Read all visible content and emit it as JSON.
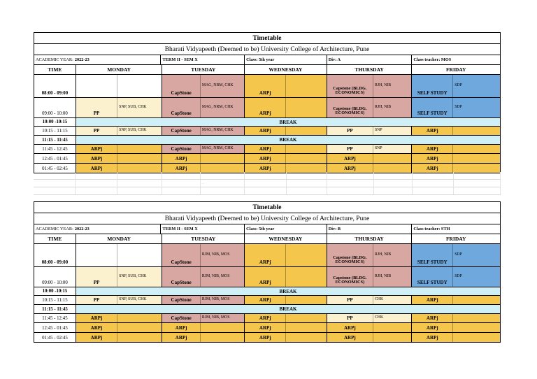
{
  "colors": {
    "yellow": "#F4C64B",
    "cream": "#FCF1CE",
    "pink": "#D9A7A1",
    "blue": "#6FA8DC",
    "break_band": "#CFF0F7",
    "white": "#FFFFFF"
  },
  "empty_area_note": "..",
  "tables": [
    {
      "title": "Timetable",
      "subtitle": "Bharati Vidyapeeth (Deemed to be) University College of Architecture, Pune",
      "meta": {
        "academic_year_label": "ACADEMIC YEAR:",
        "academic_year": "2022-23",
        "term": "TERM II - SEM X",
        "class": "Class: 5th year",
        "division": "Div: A",
        "teacher": "Class teacher: MOS"
      },
      "day_headers": [
        "TIME",
        "MONDAY",
        "TUESDAY",
        "WEDNESDAY",
        "THURSDAY",
        "FRIDAY"
      ],
      "rows": [
        {
          "time": "08:00 - 09:00",
          "bold": true,
          "kind": "slots",
          "cells": [
            {
              "main": "",
              "code": "",
              "bg": "white"
            },
            {
              "main": "CapStone",
              "code": "MAG, NRM, CHK",
              "bg": "pink"
            },
            {
              "main": "ARPj",
              "code": "",
              "bg": "yellow"
            },
            {
              "main": "Capstone (BLDG. ECONOMICS)",
              "code": "RJH, NIB",
              "bg": "pink"
            },
            {
              "main": "SELF STUDY",
              "code": "SDP",
              "bg": "blue"
            }
          ]
        },
        {
          "time": "09:00 - 10:00",
          "bold": false,
          "kind": "slots",
          "cells": [
            {
              "main": "PP",
              "code": "SNP, SUB, CHK",
              "bg": "cream"
            },
            {
              "main": "CapStone",
              "code": "MAG, NRM, CHK",
              "bg": "pink"
            },
            {
              "main": "ARPj",
              "code": "",
              "bg": "yellow"
            },
            {
              "main": "Capstone (BLDG. ECONOMICS)",
              "code": "RJH, NIB",
              "bg": "pink"
            },
            {
              "main": "SELF STUDY",
              "code": "SDP",
              "bg": "blue"
            }
          ]
        },
        {
          "time": "10:00 -10:15",
          "bold": true,
          "kind": "break",
          "label": "BREAK"
        },
        {
          "time": "10:15 - 11:15",
          "bold": false,
          "kind": "slots",
          "cells": [
            {
              "main": "PP",
              "code": "SNP, SUB, CHK",
              "bg": "cream"
            },
            {
              "main": "CapStone",
              "code": "MAG, NRM, CHK",
              "bg": "pink"
            },
            {
              "main": "ARPj",
              "code": "",
              "bg": "yellow"
            },
            {
              "main": "PP",
              "code": "SNP",
              "bg": "cream"
            },
            {
              "main": "ARPj",
              "code": "",
              "bg": "yellow"
            }
          ]
        },
        {
          "time": "11:15 - 11:45",
          "bold": true,
          "kind": "break",
          "label": "BREAK"
        },
        {
          "time": "11:45 - 12:45",
          "bold": false,
          "kind": "slots",
          "cells": [
            {
              "main": "ARPj",
              "code": "",
              "bg": "yellow"
            },
            {
              "main": "CapStone",
              "code": "MAG, NRM, CHK",
              "bg": "pink"
            },
            {
              "main": "ARPj",
              "code": "",
              "bg": "yellow"
            },
            {
              "main": "PP",
              "code": "SNP",
              "bg": "cream"
            },
            {
              "main": "ARPj",
              "code": "",
              "bg": "yellow"
            }
          ]
        },
        {
          "time": "12:45 - 01:45",
          "bold": false,
          "kind": "slots",
          "cells": [
            {
              "main": "ARPj",
              "code": "",
              "bg": "yellow"
            },
            {
              "main": "ARPj",
              "code": "",
              "bg": "yellow"
            },
            {
              "main": "ARPj",
              "code": "",
              "bg": "yellow"
            },
            {
              "main": "ARPj",
              "code": "",
              "bg": "yellow"
            },
            {
              "main": "ARPj",
              "code": "",
              "bg": "yellow"
            }
          ]
        },
        {
          "time": "01:45 - 02:45",
          "bold": false,
          "kind": "slots",
          "cells": [
            {
              "main": "ARPj",
              "code": "",
              "bg": "yellow"
            },
            {
              "main": "ARPj",
              "code": "",
              "bg": "yellow"
            },
            {
              "main": "ARPj",
              "code": "",
              "bg": "yellow"
            },
            {
              "main": "ARPj",
              "code": "",
              "bg": "yellow"
            },
            {
              "main": "ARPj",
              "code": "",
              "bg": "yellow"
            }
          ]
        }
      ]
    },
    {
      "title": "Timetable",
      "subtitle": "Bharati Vidyapeeth (Deemed to be) University College of Architecture, Pune",
      "meta": {
        "academic_year_label": "ACADEMIC YEAR:",
        "academic_year": "2022-23",
        "term": "TERM II - SEM X",
        "class": "Class: 5th year",
        "division": "Div: B",
        "teacher": "Class teacher: STH"
      },
      "day_headers": [
        "TIME",
        "MONDAY",
        "TUESDAY",
        "WEDNESDAY",
        "THURSDAY",
        "FRIDAY"
      ],
      "rows": [
        {
          "time": "08:00 - 09:00",
          "bold": true,
          "kind": "slots",
          "cells": [
            {
              "main": "",
              "code": "",
              "bg": "white"
            },
            {
              "main": "CapStone",
              "code": "RJM, NIB, MOS",
              "bg": "pink"
            },
            {
              "main": "ARPj",
              "code": "",
              "bg": "yellow"
            },
            {
              "main": "Capstone (BLDG. ECONOMICS)",
              "code": "RJH, NIB",
              "bg": "pink"
            },
            {
              "main": "SELF STUDY",
              "code": "SDP",
              "bg": "blue"
            }
          ]
        },
        {
          "time": "09:00 - 10:00",
          "bold": false,
          "kind": "slots",
          "cells": [
            {
              "main": "PP",
              "code": "SNP, SUB, CHK",
              "bg": "cream"
            },
            {
              "main": "CapStone",
              "code": "RJM, NIB, MOS",
              "bg": "pink"
            },
            {
              "main": "ARPj",
              "code": "",
              "bg": "yellow"
            },
            {
              "main": "Capstone (BLDG. ECONOMICS)",
              "code": "RJH, NIB",
              "bg": "pink"
            },
            {
              "main": "SELF STUDY",
              "code": "SDP",
              "bg": "blue"
            }
          ]
        },
        {
          "time": "10:00 -10:15",
          "bold": true,
          "kind": "break",
          "label": "BREAK"
        },
        {
          "time": "10:15 - 11:15",
          "bold": false,
          "kind": "slots",
          "cells": [
            {
              "main": "PP",
              "code": "SNP, SUB, CHK",
              "bg": "cream"
            },
            {
              "main": "CapStone",
              "code": "RJM, NIB, MOS",
              "bg": "pink"
            },
            {
              "main": "ARPj",
              "code": "",
              "bg": "yellow"
            },
            {
              "main": "PP",
              "code": "CHK",
              "bg": "cream"
            },
            {
              "main": "ARPj",
              "code": "",
              "bg": "yellow"
            }
          ]
        },
        {
          "time": "11:15 - 11:45",
          "bold": true,
          "kind": "break",
          "label": "BREAK"
        },
        {
          "time": "11:45 - 12:45",
          "bold": false,
          "kind": "slots",
          "cells": [
            {
              "main": "ARPj",
              "code": "",
              "bg": "yellow"
            },
            {
              "main": "CapStone",
              "code": "RJM, NIB, MOS",
              "bg": "pink"
            },
            {
              "main": "ARPj",
              "code": "",
              "bg": "yellow"
            },
            {
              "main": "PP",
              "code": "CHK",
              "bg": "cream"
            },
            {
              "main": "ARPj",
              "code": "",
              "bg": "yellow"
            }
          ]
        },
        {
          "time": "12:45 - 01:45",
          "bold": false,
          "kind": "slots",
          "cells": [
            {
              "main": "ARPj",
              "code": "",
              "bg": "yellow"
            },
            {
              "main": "ARPj",
              "code": "",
              "bg": "yellow"
            },
            {
              "main": "ARPj",
              "code": "",
              "bg": "yellow"
            },
            {
              "main": "ARPj",
              "code": "",
              "bg": "yellow"
            },
            {
              "main": "ARPj",
              "code": "",
              "bg": "yellow"
            }
          ]
        },
        {
          "time": "01:45 - 02:45",
          "bold": false,
          "kind": "slots",
          "cells": [
            {
              "main": "ARPj",
              "code": "",
              "bg": "yellow"
            },
            {
              "main": "ARPj",
              "code": "",
              "bg": "yellow"
            },
            {
              "main": "ARPj",
              "code": "",
              "bg": "yellow"
            },
            {
              "main": "ARPj",
              "code": "",
              "bg": "yellow"
            },
            {
              "main": "ARPj",
              "code": "",
              "bg": "yellow"
            }
          ]
        }
      ]
    }
  ]
}
